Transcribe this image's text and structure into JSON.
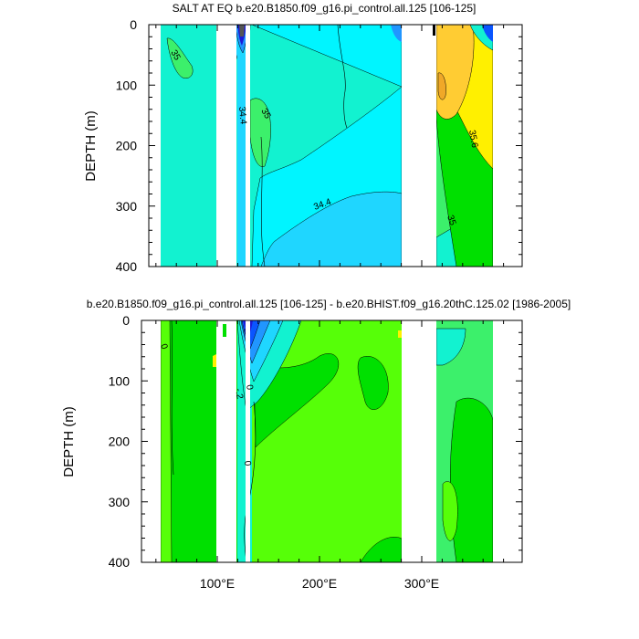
{
  "chart_data": [
    {
      "type": "heatmap",
      "title": "SALT AT EQ b.e20.B1850.f09_g16.pi_control.all.125 [106-125]",
      "ylabel": "DEPTH (m)",
      "xlabel": "",
      "yticks": [
        "0",
        "100",
        "200",
        "300",
        "400"
      ],
      "ylim": [
        0,
        400
      ],
      "xlim": [
        30,
        390
      ],
      "contour_labels": [
        "35",
        "34.4",
        "35",
        "34.4",
        "35.6",
        "35"
      ],
      "land_gaps_deg": [
        [
          98,
          118
        ],
        [
          124,
          128
        ],
        [
          278,
          314
        ]
      ]
    },
    {
      "type": "heatmap",
      "title": "b.e20.B1850.f09_g16.pi_control.all.125 [106-125] - b.e20.BHIST.f09_g16.20thC.125.02 [1986-2005]",
      "ylabel": "DEPTH (m)",
      "xlabel": "",
      "yticks": [
        "0",
        "100",
        "200",
        "300",
        "400"
      ],
      "xticks": [
        "100°E",
        "200°E",
        "300°E"
      ],
      "ylim": [
        0,
        400
      ],
      "xlim": [
        30,
        390
      ],
      "contour_labels": [
        "0",
        "0",
        "-.2",
        "0"
      ],
      "land_gaps_deg": [
        [
          98,
          118
        ],
        [
          124,
          128
        ],
        [
          278,
          314
        ]
      ]
    }
  ],
  "colors": {
    "teal": "#12f2d0",
    "cyan": "#00f5ff",
    "light_blue": "#1fd6ff",
    "mid_blue": "#2196ff",
    "blue": "#0a55ff",
    "dark_blue": "#1b1bd8",
    "light_green": "#3cf06b",
    "green": "#00e000",
    "yellow_green": "#56ff08",
    "yellow": "#fff000",
    "orange": "#ffcc33",
    "dark_orange": "#f0a828"
  }
}
